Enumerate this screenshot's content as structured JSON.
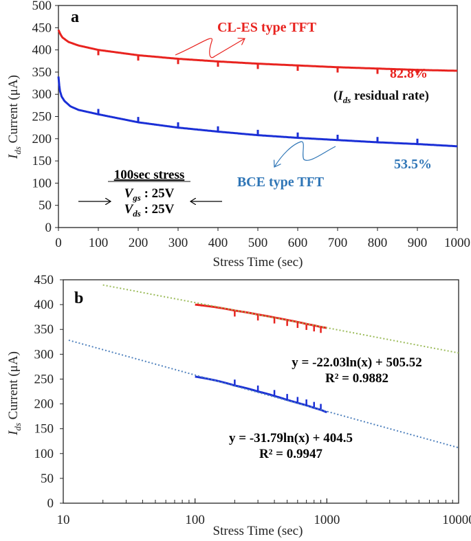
{
  "chart_data": [
    {
      "type": "line",
      "panel_label": "a",
      "xlabel": "Stress Time (sec)",
      "ylabel": {
        "main": "I",
        "sub": "ds",
        "rest": " Current (μA)"
      },
      "xlim": [
        0,
        1000
      ],
      "ylim": [
        0,
        500
      ],
      "xticks": [
        0,
        100,
        200,
        300,
        400,
        500,
        600,
        700,
        800,
        900,
        1000
      ],
      "yticks": [
        0,
        50,
        100,
        150,
        200,
        250,
        300,
        350,
        400,
        450,
        500
      ],
      "grid": false,
      "series": [
        {
          "name": "CL-ES type TFT",
          "color": "#e8231f",
          "x": [
            0,
            5,
            10,
            25,
            50,
            100,
            200,
            300,
            400,
            500,
            600,
            700,
            800,
            900,
            1000
          ],
          "y": [
            445,
            435,
            428,
            418,
            410,
            400,
            388,
            380,
            374,
            369,
            365,
            361,
            358,
            355,
            353
          ],
          "spike_direction": "down",
          "spike_size": 12
        },
        {
          "name": "BCE type TFT",
          "color": "#1a2fd6",
          "x": [
            0,
            3,
            8,
            15,
            30,
            50,
            100,
            200,
            300,
            400,
            500,
            600,
            700,
            800,
            900,
            1000
          ],
          "y": [
            340,
            310,
            295,
            285,
            273,
            265,
            255,
            237,
            225,
            216,
            208,
            202,
            197,
            192,
            188,
            183
          ],
          "spike_direction": "up",
          "spike_size": 12
        }
      ],
      "annotations": {
        "red_residual": "82.8%",
        "blue_residual": "53.5%",
        "residual_label": {
          "open": "(",
          "main": "I",
          "sub": "ds",
          "rest": " residual rate)"
        },
        "stress_title": "100sec stress",
        "vgs": {
          "main": "V",
          "sub": "gs",
          "rest": " : 25V"
        },
        "vds": {
          "main": "V",
          "sub": "ds",
          "rest": " : 25V"
        }
      }
    },
    {
      "type": "line",
      "panel_label": "b",
      "xlabel": "Stress Time (sec)",
      "ylabel": {
        "main": "I",
        "sub": "ds",
        "rest": " Current (μA)"
      },
      "xscale": "log",
      "xlim": [
        10,
        10000
      ],
      "ylim": [
        0,
        450
      ],
      "xticks": [
        10,
        100,
        1000,
        10000
      ],
      "yticks": [
        0,
        50,
        100,
        150,
        200,
        250,
        300,
        350,
        400,
        450
      ],
      "grid": false,
      "series": [
        {
          "color": "#e8231f",
          "x": [
            100,
            200,
            300,
            400,
            500,
            600,
            700,
            800,
            900,
            1000
          ],
          "y": [
            400,
            388,
            380,
            374,
            369,
            365,
            361,
            358,
            355,
            353
          ],
          "spike_direction": "down"
        },
        {
          "color": "#1a2fd6",
          "x": [
            100,
            200,
            300,
            400,
            500,
            600,
            700,
            800,
            900,
            1000
          ],
          "y": [
            255,
            237,
            225,
            216,
            208,
            202,
            197,
            192,
            188,
            183
          ],
          "spike_direction": "up"
        }
      ],
      "trendlines": [
        {
          "color": "#9bbb59",
          "slope": -22.03,
          "intercept": 505.52,
          "x_range": [
            20,
            10000
          ],
          "equation": "y = -22.03ln(x) + 505.52",
          "r2": "R² = 0.9882"
        },
        {
          "color": "#4f81bd",
          "slope": -31.79,
          "intercept": 404.5,
          "x_range": [
            11,
            10000
          ],
          "equation": "y = -31.79ln(x) + 404.5",
          "r2": "R² = 0.9947"
        }
      ]
    }
  ]
}
